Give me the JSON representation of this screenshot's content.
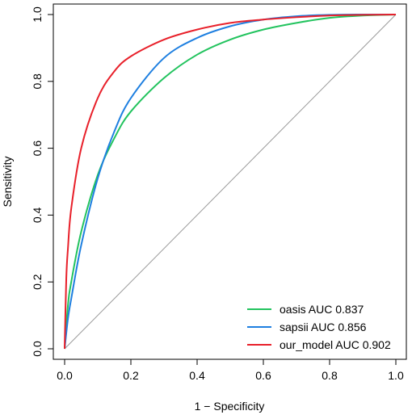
{
  "chart_data": {
    "type": "line",
    "xlabel": "1 − Specificity",
    "ylabel": "Sensitivity",
    "xlim": [
      0,
      1
    ],
    "ylim": [
      0,
      1
    ],
    "x_ticks": [
      "0.0",
      "0.2",
      "0.4",
      "0.6",
      "0.8",
      "1.0"
    ],
    "y_ticks": [
      "0.0",
      "0.2",
      "0.4",
      "0.6",
      "0.8",
      "1.0"
    ],
    "grid": false,
    "legend_position": "bottom-right",
    "reference_line": {
      "from": [
        0,
        0
      ],
      "to": [
        1,
        1
      ],
      "color": "#999999"
    },
    "series": [
      {
        "name": "oasis AUC 0.837",
        "color": "#22c35e",
        "x": [
          0,
          0.01,
          0.02,
          0.05,
          0.1,
          0.15,
          0.2,
          0.3,
          0.4,
          0.5,
          0.6,
          0.7,
          0.8,
          0.9,
          1.0
        ],
        "y": [
          0,
          0.13,
          0.2,
          0.35,
          0.52,
          0.63,
          0.71,
          0.81,
          0.88,
          0.925,
          0.955,
          0.975,
          0.99,
          0.997,
          1.0
        ]
      },
      {
        "name": "sapsii AUC 0.856",
        "color": "#1e7fe0",
        "x": [
          0,
          0.01,
          0.02,
          0.05,
          0.1,
          0.15,
          0.2,
          0.3,
          0.4,
          0.5,
          0.6,
          0.7,
          0.8,
          0.9,
          1.0
        ],
        "y": [
          0,
          0.09,
          0.15,
          0.31,
          0.51,
          0.65,
          0.75,
          0.87,
          0.93,
          0.965,
          0.985,
          0.995,
          0.999,
          1.0,
          1.0
        ]
      },
      {
        "name": "our_model AUC 0.902",
        "color": "#e8202a",
        "x": [
          0,
          0.005,
          0.01,
          0.02,
          0.05,
          0.1,
          0.15,
          0.2,
          0.3,
          0.4,
          0.5,
          0.6,
          0.7,
          0.8,
          0.9,
          1.0
        ],
        "y": [
          0,
          0.21,
          0.3,
          0.42,
          0.6,
          0.75,
          0.83,
          0.875,
          0.925,
          0.955,
          0.975,
          0.985,
          0.992,
          0.997,
          0.999,
          1.0
        ]
      }
    ]
  }
}
